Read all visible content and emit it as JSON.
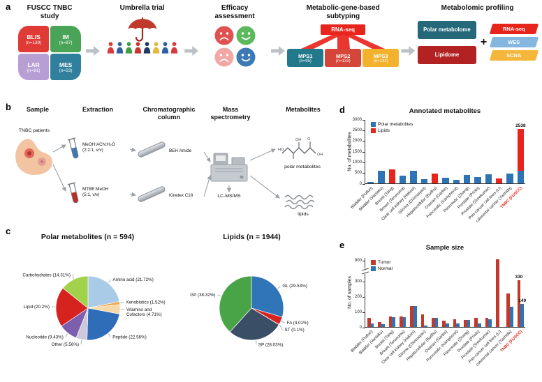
{
  "panels": {
    "a": {
      "label": "a",
      "study": {
        "title": "FUSCC TNBC study",
        "subtypes": [
          {
            "name": "BLIS",
            "n": "(n=139)",
            "color": "#df3a35"
          },
          {
            "name": "IM",
            "n": "(n=87)",
            "color": "#4aa457"
          },
          {
            "name": "LAR",
            "n": "(n=81)",
            "color": "#b79fd4"
          },
          {
            "name": "MES",
            "n": "(n=53)",
            "color": "#2f7f9d"
          }
        ]
      },
      "umbrella": {
        "title": "Umbrella trial",
        "umbrella_color": "#c0392b",
        "people_colors": [
          "#d93a3a",
          "#2e5fa3",
          "#3f9d46",
          "#c8342f",
          "#1f3864",
          "#e2b93b",
          "#2e5fa3",
          "#d93a3a"
        ]
      },
      "efficacy": {
        "title": "Efficacy assessment",
        "faces": [
          {
            "mood": "sad",
            "color": "#e05252"
          },
          {
            "mood": "happy",
            "color": "#5cb85c"
          },
          {
            "mood": "sad",
            "color": "#f2a7a7"
          },
          {
            "mood": "happy",
            "color": "#3d7ab5"
          }
        ]
      },
      "subtyping": {
        "title": "Metabolic-gene-based subtyping",
        "source": "RNA-seq",
        "source_color": "#e8251d",
        "groups": [
          {
            "name": "MPS1",
            "n": "(n=95)",
            "color": "#23798c"
          },
          {
            "name": "MPS2",
            "n": "(n=133)",
            "color": "#d6453a"
          },
          {
            "name": "MPS3",
            "n": "(n=132)",
            "color": "#f2b22e"
          }
        ]
      },
      "profiling": {
        "title": "Metabolomic profiling",
        "boxes": [
          {
            "label": "Polar metabolome",
            "color": "#246879"
          },
          {
            "label": "Lipidome",
            "color": "#b22222"
          }
        ],
        "plus": "+",
        "omics": [
          {
            "label": "RNA-seq",
            "color": "#e8251d"
          },
          {
            "label": "WES",
            "color": "#85b6e0"
          },
          {
            "label": "SCNA",
            "color": "#f5b63c"
          }
        ]
      }
    },
    "b": {
      "label": "b",
      "headers": [
        "Sample",
        "Extraction",
        "Chromatographic\ncolumn",
        "Mass\nspectrometry",
        "Metabolites"
      ],
      "sample_caption": "TNBC patients",
      "extractions": [
        {
          "label": "MeOH:ACN:H₂O\n(2:2:1, v/v)",
          "liquid_color": "#3d7ab5"
        },
        {
          "label": "MTBE:MeOH\n(5:1, v/v)",
          "liquid_color": "#c22b23"
        }
      ],
      "columns": [
        "BEH Amide",
        "Kinetex C18"
      ],
      "ms_caption": "LC-MS/MS",
      "metabolite_captions": [
        "polar metabolites",
        "lipids"
      ]
    },
    "c": {
      "label": "c"
    },
    "d": {
      "label": "d"
    },
    "e": {
      "label": "e"
    }
  },
  "chart_data": [
    {
      "id": "polar-pie",
      "type": "pie",
      "title": "Polar metabolites (n = 594)",
      "total": 594,
      "slices": [
        {
          "label": "Amino acid (21.72%)",
          "value": 21.72,
          "color": "#a9cbe8"
        },
        {
          "label": "Xenobiotics (1.52%)",
          "value": 1.52,
          "color": "#f2a54a"
        },
        {
          "label": "Vitamins and\nCofactors (4.71%)",
          "value": 4.71,
          "color": "#f7d9a8"
        },
        {
          "label": "Peptide (22.56%)",
          "value": 22.56,
          "color": "#2f6db8"
        },
        {
          "label": "Other (5.56%)",
          "value": 5.56,
          "color": "#cfc8dd"
        },
        {
          "label": "Nucleotide (9.43%)",
          "value": 9.43,
          "color": "#7c5fad"
        },
        {
          "label": "Lipid (20.2%)",
          "value": 20.2,
          "color": "#d6231f"
        },
        {
          "label": "Carbohydrates (14.31%)",
          "value": 14.31,
          "color": "#a2d14a"
        }
      ]
    },
    {
      "id": "lipid-pie",
      "type": "pie",
      "title": "Lipids (n = 1944)",
      "total": 1944,
      "slices": [
        {
          "label": "GL (29.53%)",
          "value": 29.53,
          "color": "#2f75b8"
        },
        {
          "label": "FA (4.01%)",
          "value": 4.01,
          "color": "#d6231f"
        },
        {
          "label": "ST (0.1%)",
          "value": 0.1,
          "color": "#6b1f1f"
        },
        {
          "label": "SP (28.03%)",
          "value": 28.03,
          "color": "#3a4e66"
        },
        {
          "label": "GP (38.32%)",
          "value": 38.32,
          "color": "#49a347"
        }
      ]
    },
    {
      "id": "annotated-metabolites",
      "type": "bar",
      "stacked": true,
      "title": "Annotated metabolites",
      "ylabel": "No. of metabolites",
      "ylim": [
        0,
        3000
      ],
      "yticks": [
        0,
        500,
        1000,
        1500,
        2000,
        2500,
        3000
      ],
      "categories": [
        "Bladder (Putluri)",
        "Bladder (Vantaku)",
        "Breast (Tang)",
        "Breast (Terunuma)",
        "Clear cell kidney (Hakimi)",
        "Glioma (Chinnaiyan)",
        "Hepatocellular (Budhu)",
        "Ovarian (Garbis)",
        "Pancreatic (Kamphorst)",
        "Pancreatic (Zhang)",
        "Prostate (Priolo)",
        "Prostate (Sreekumar)",
        "Pan-cancer cell lines (Li)",
        "colorectal cancer (Yachida)",
        "TNBC (FUSCC)"
      ],
      "series": [
        {
          "name": "Polar metabolites",
          "color": "#2e74b5",
          "values": [
            80,
            585,
            0,
            350,
            580,
            200,
            0,
            255,
            150,
            400,
            300,
            420,
            0,
            450,
            594
          ]
        },
        {
          "name": "Lipids",
          "color": "#e8251d",
          "values": [
            0,
            0,
            655,
            0,
            0,
            0,
            470,
            0,
            0,
            0,
            0,
            0,
            230,
            0,
            1944
          ]
        }
      ],
      "bar_labels": [
        {
          "category_index": 14,
          "text": "2538"
        }
      ],
      "highlight_category_index": 14,
      "highlight_color": "#e8251d"
    },
    {
      "id": "sample-size",
      "type": "grouped_bar",
      "stacked": false,
      "title": "Sample size",
      "ylabel": "No. of samples",
      "yticks": [
        0,
        100,
        200,
        300,
        900
      ],
      "axis_break_between": [
        300,
        900
      ],
      "categories": [
        "Bladder (Putluri)",
        "Bladder (Vantaku)",
        "Breast (Tang)",
        "Breast (Terunuma)",
        "Clear cell kidney (Hakimi)",
        "Glioma (Chinnaiyan)",
        "Hepatocellular (Budhu)",
        "Ovarian (Garbis)",
        "Pancreatic (Kamphorst)",
        "Pancreatic (Zhang)",
        "Prostate (Priolo)",
        "Prostate (Sreekumar)",
        "Pan-cancer cell lines (Li)",
        "colorectal cancer (Yachida)",
        "TNBC (FUSCC)"
      ],
      "series": [
        {
          "name": "Tumor",
          "color": "#c0392b",
          "values": [
            58,
            30,
            70,
            67,
            138,
            80,
            60,
            40,
            49,
            45,
            61,
            59,
            928,
            220,
            330
          ]
        },
        {
          "name": "Normal",
          "color": "#2e74b5",
          "values": [
            25,
            18,
            65,
            65,
            138,
            10,
            60,
            22,
            25,
            45,
            25,
            51,
            0,
            130,
            149
          ]
        }
      ],
      "bar_labels": [
        {
          "category_index": 14,
          "series_index": 0,
          "text": "330"
        },
        {
          "category_index": 14,
          "series_index": 1,
          "text": "149"
        }
      ],
      "highlight_category_index": 14,
      "highlight_color": "#e8251d"
    }
  ]
}
